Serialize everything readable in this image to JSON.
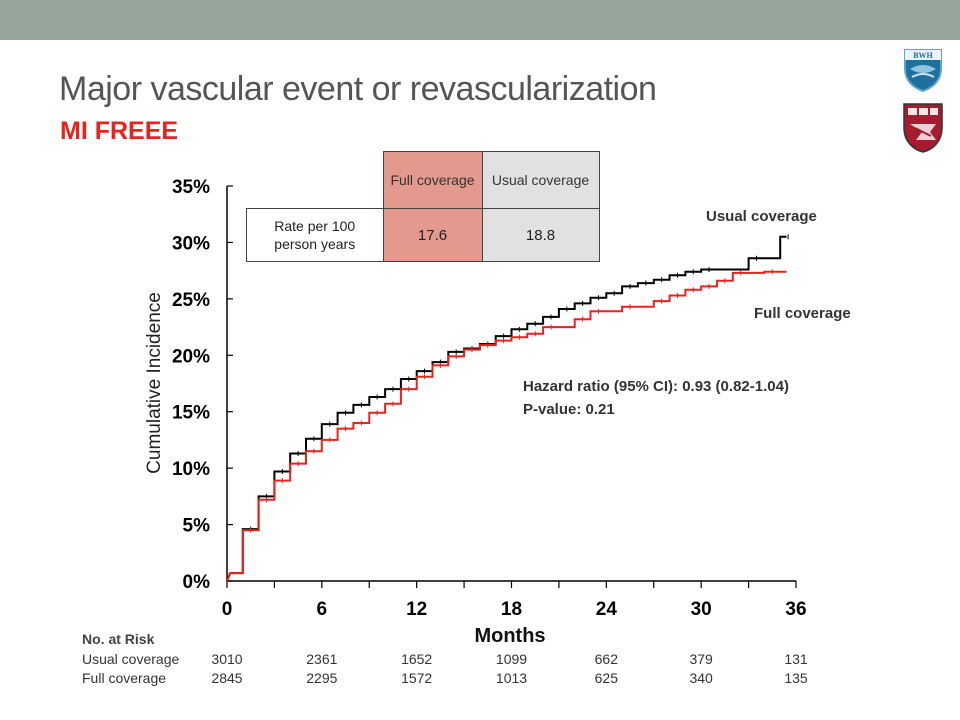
{
  "slide": {
    "title": "Major vascular event or revascularization",
    "subtitle": "MI FREEE",
    "logos": [
      "BWH",
      "HMS shield"
    ]
  },
  "rate_table": {
    "col_headers": [
      "Full coverage",
      "Usual coverage"
    ],
    "row_label": "Rate per 100 person years",
    "values": [
      "17.6",
      "18.8"
    ],
    "colors": {
      "full": "#e3998e",
      "usual": "#e1e1e1"
    }
  },
  "annotations": {
    "usual_label": "Usual coverage",
    "full_label": "Full coverage",
    "hazard_ratio": "Hazard ratio (95% CI): 0.93 (0.82-1.04)",
    "p_value": "P-value: 0.21"
  },
  "risk_table": {
    "heading": "No. at Risk",
    "rows": [
      {
        "label": "Usual coverage",
        "values": [
          "3010",
          "2361",
          "1652",
          "1099",
          "662",
          "379",
          "131"
        ]
      },
      {
        "label": "Full coverage",
        "values": [
          "2845",
          "2295",
          "1572",
          "1013",
          "625",
          "340",
          "135"
        ]
      }
    ]
  },
  "chart_data": {
    "type": "line",
    "subtype": "kaplan-meier step (cumulative incidence)",
    "xlabel": "Months",
    "ylabel": "Cumulative Incidence",
    "xlim": [
      0,
      36
    ],
    "ylim": [
      0,
      35
    ],
    "xticks": [
      "0",
      "6",
      "12",
      "18",
      "24",
      "30",
      "36"
    ],
    "yticks": [
      "0%",
      "5%",
      "10%",
      "15%",
      "20%",
      "25%",
      "30%",
      "35%"
    ],
    "grid": false,
    "series": [
      {
        "name": "Usual coverage",
        "color": "#000000",
        "points": [
          [
            0,
            0
          ],
          [
            0.2,
            0.7
          ],
          [
            1,
            0.7
          ],
          [
            1,
            4.6
          ],
          [
            2,
            4.6
          ],
          [
            2,
            7.5
          ],
          [
            3,
            7.5
          ],
          [
            3,
            9.7
          ],
          [
            4,
            9.7
          ],
          [
            4,
            11.3
          ],
          [
            5,
            11.3
          ],
          [
            5,
            12.6
          ],
          [
            6,
            12.6
          ],
          [
            6,
            13.9
          ],
          [
            7,
            13.9
          ],
          [
            7,
            14.9
          ],
          [
            8,
            14.9
          ],
          [
            8,
            15.6
          ],
          [
            9,
            15.6
          ],
          [
            9,
            16.3
          ],
          [
            10,
            16.3
          ],
          [
            10,
            17.0
          ],
          [
            11,
            17.0
          ],
          [
            11,
            17.9
          ],
          [
            12,
            17.9
          ],
          [
            12,
            18.6
          ],
          [
            13,
            18.6
          ],
          [
            13,
            19.4
          ],
          [
            14,
            19.4
          ],
          [
            14,
            20.3
          ],
          [
            15,
            20.3
          ],
          [
            15,
            20.6
          ],
          [
            16,
            20.6
          ],
          [
            16,
            21.0
          ],
          [
            17,
            21.0
          ],
          [
            17,
            21.7
          ],
          [
            18,
            21.7
          ],
          [
            18,
            22.3
          ],
          [
            19,
            22.3
          ],
          [
            19,
            22.8
          ],
          [
            20,
            22.8
          ],
          [
            20,
            23.4
          ],
          [
            21,
            23.4
          ],
          [
            21,
            24.1
          ],
          [
            22,
            24.1
          ],
          [
            22,
            24.6
          ],
          [
            23,
            24.6
          ],
          [
            23,
            25.1
          ],
          [
            24,
            25.1
          ],
          [
            24,
            25.5
          ],
          [
            25,
            25.5
          ],
          [
            25,
            26.1
          ],
          [
            26,
            26.1
          ],
          [
            26,
            26.4
          ],
          [
            27,
            26.4
          ],
          [
            27,
            26.7
          ],
          [
            28,
            26.7
          ],
          [
            28,
            27.1
          ],
          [
            29,
            27.1
          ],
          [
            29,
            27.4
          ],
          [
            30,
            27.4
          ],
          [
            30,
            27.6
          ],
          [
            33,
            27.6
          ],
          [
            33,
            28.6
          ],
          [
            35,
            28.6
          ],
          [
            35,
            30.5
          ],
          [
            35.4,
            30.5
          ]
        ]
      },
      {
        "name": "Full coverage",
        "color": "#e8221c",
        "points": [
          [
            0,
            0
          ],
          [
            0.2,
            0.7
          ],
          [
            1,
            0.7
          ],
          [
            1,
            4.5
          ],
          [
            2,
            4.5
          ],
          [
            2,
            7.2
          ],
          [
            3,
            7.2
          ],
          [
            3,
            8.9
          ],
          [
            4,
            8.9
          ],
          [
            4,
            10.4
          ],
          [
            5,
            10.4
          ],
          [
            5,
            11.5
          ],
          [
            6,
            11.5
          ],
          [
            6,
            12.5
          ],
          [
            7,
            12.5
          ],
          [
            7,
            13.5
          ],
          [
            8,
            13.5
          ],
          [
            8,
            14.0
          ],
          [
            9,
            14.0
          ],
          [
            9,
            14.9
          ],
          [
            10,
            14.9
          ],
          [
            10,
            15.7
          ],
          [
            11,
            15.7
          ],
          [
            11,
            17.0
          ],
          [
            12,
            17.0
          ],
          [
            12,
            18.1
          ],
          [
            13,
            18.1
          ],
          [
            13,
            19.1
          ],
          [
            14,
            19.1
          ],
          [
            14,
            19.9
          ],
          [
            15,
            19.9
          ],
          [
            15,
            20.5
          ],
          [
            16,
            20.5
          ],
          [
            16,
            20.9
          ],
          [
            17,
            20.9
          ],
          [
            17,
            21.3
          ],
          [
            18,
            21.3
          ],
          [
            18,
            21.6
          ],
          [
            19,
            21.6
          ],
          [
            19,
            21.9
          ],
          [
            20,
            21.9
          ],
          [
            20,
            22.5
          ],
          [
            22,
            22.5
          ],
          [
            22,
            23.2
          ],
          [
            23,
            23.2
          ],
          [
            23,
            23.9
          ],
          [
            25,
            23.9
          ],
          [
            25,
            24.3
          ],
          [
            27,
            24.3
          ],
          [
            27,
            24.8
          ],
          [
            28,
            24.8
          ],
          [
            28,
            25.3
          ],
          [
            29,
            25.3
          ],
          [
            29,
            25.8
          ],
          [
            30,
            25.8
          ],
          [
            30,
            26.1
          ],
          [
            31,
            26.1
          ],
          [
            31,
            26.6
          ],
          [
            32,
            26.6
          ],
          [
            32,
            27.3
          ],
          [
            34,
            27.3
          ],
          [
            34,
            27.4
          ],
          [
            35.4,
            27.4
          ]
        ]
      }
    ]
  }
}
